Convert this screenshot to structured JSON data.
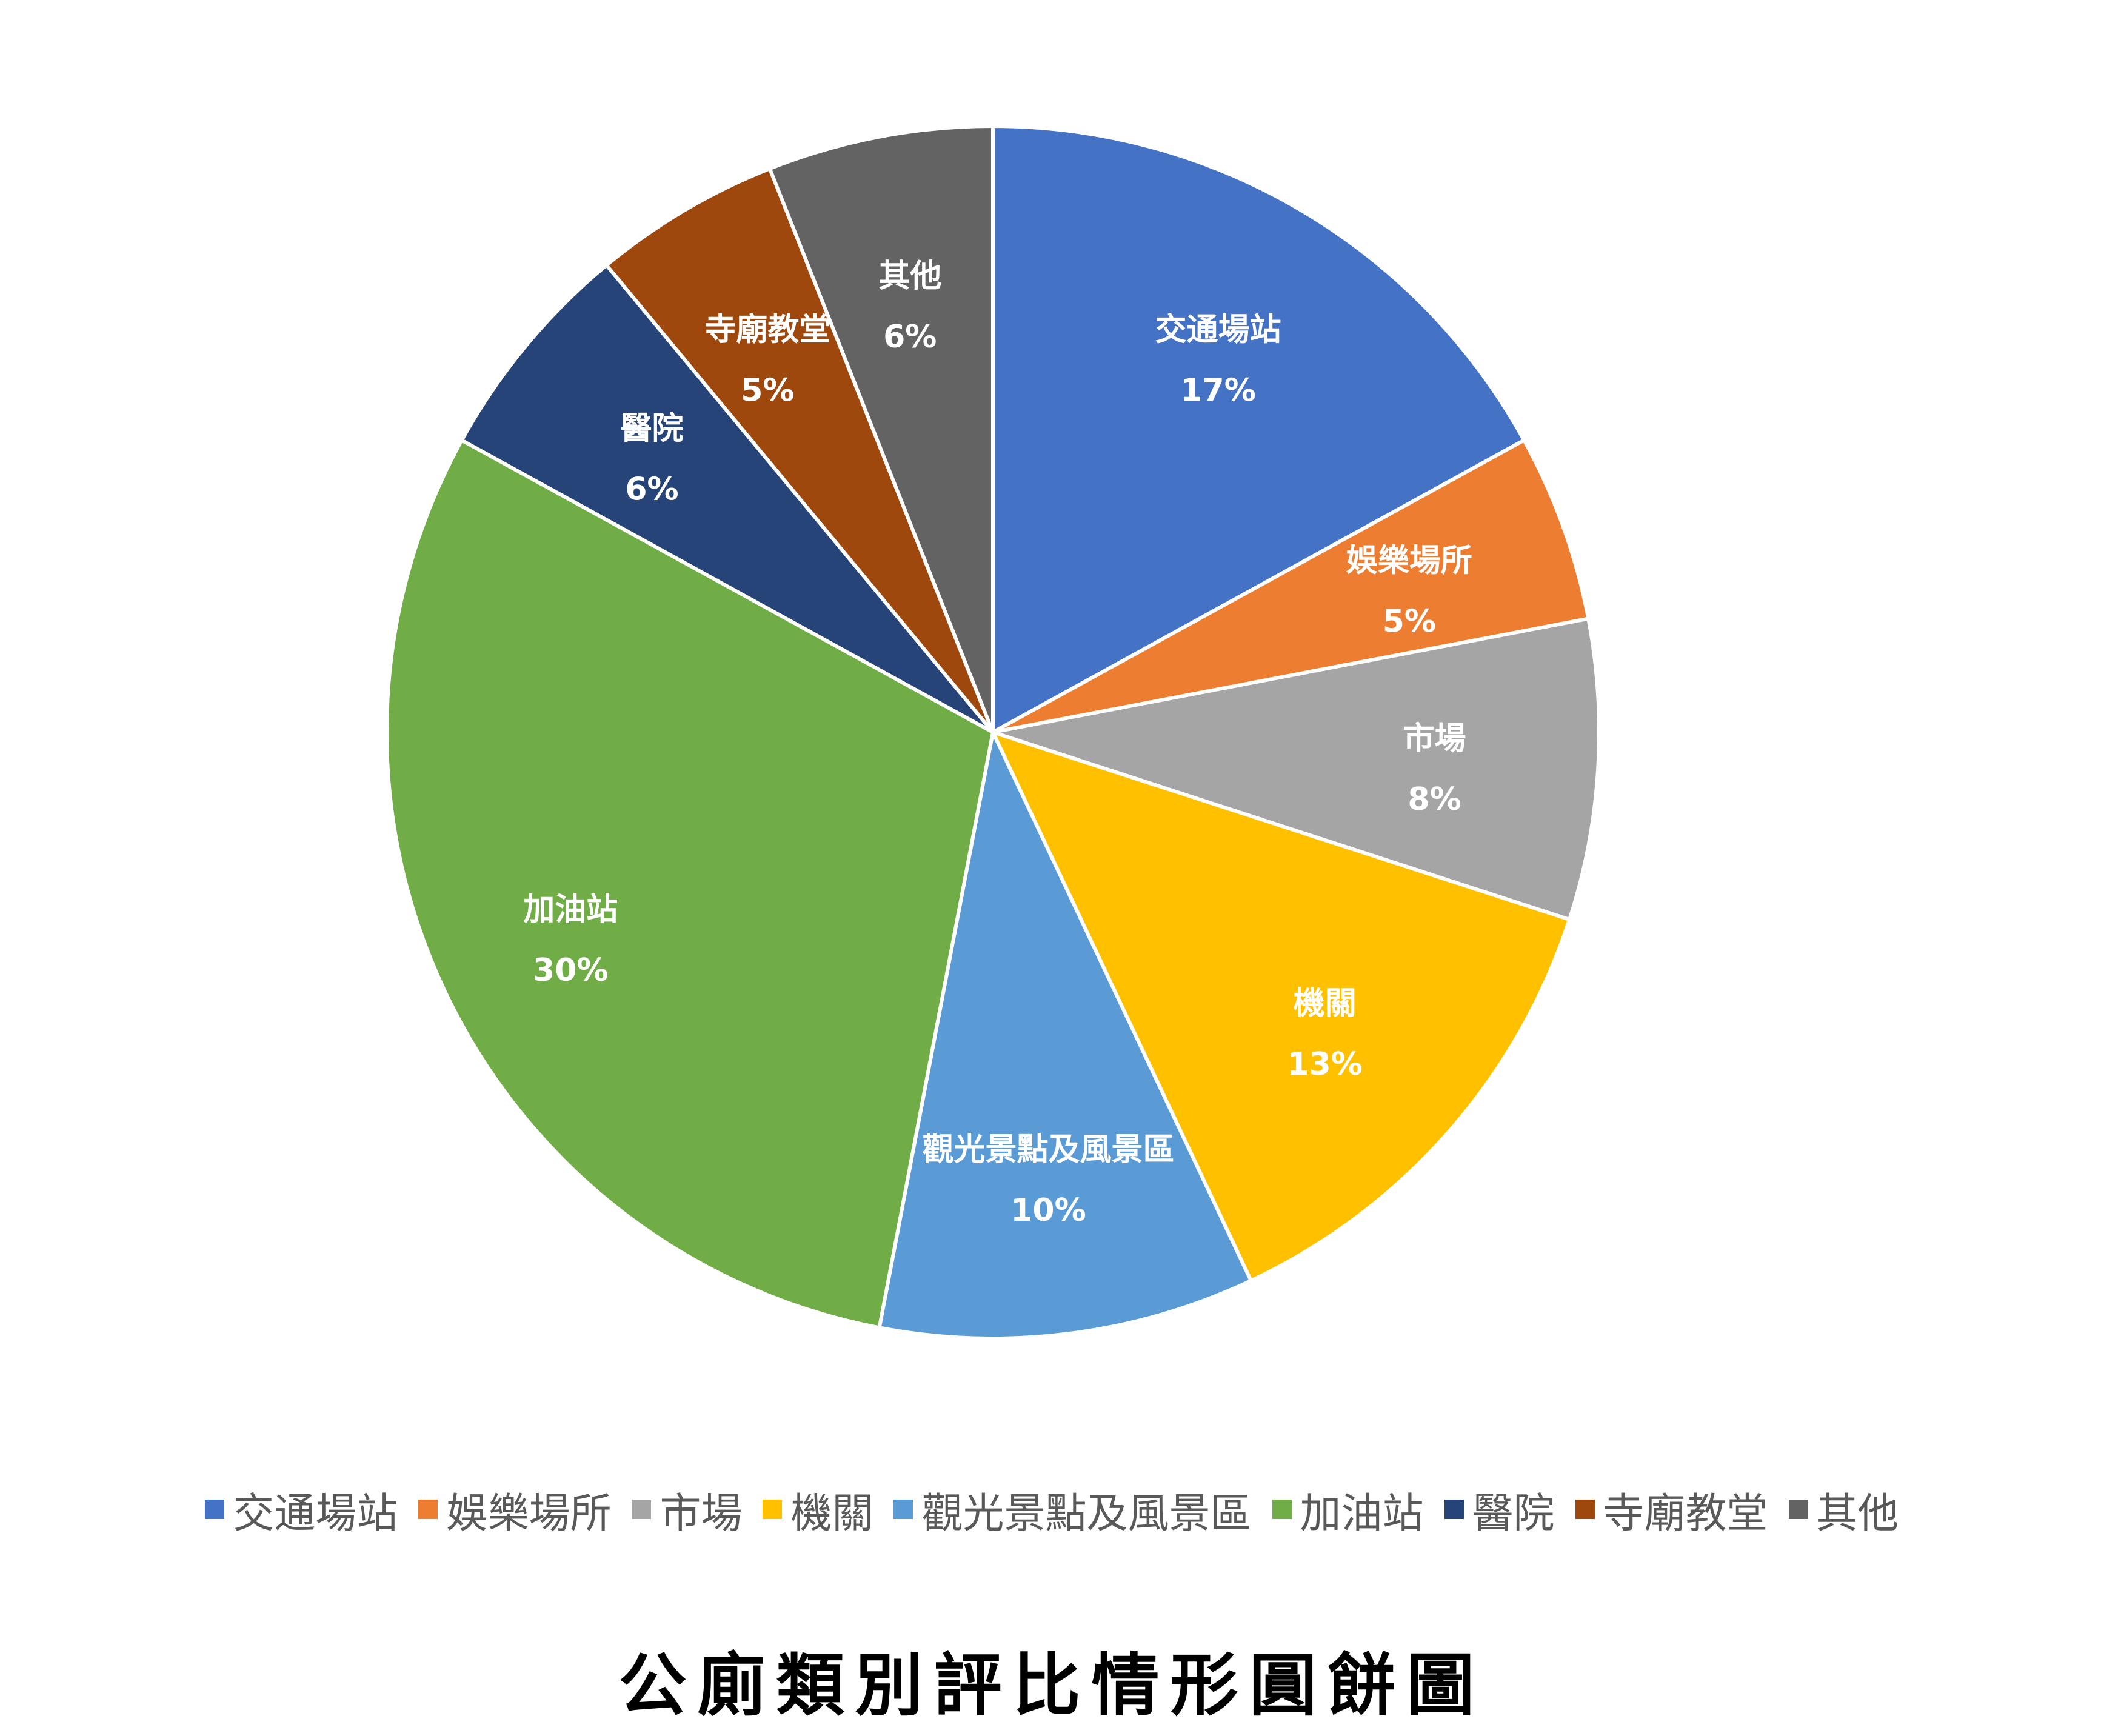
{
  "chart_data": {
    "type": "pie",
    "categories": [
      "交通場站",
      "娛樂場所",
      "市場",
      "機關",
      "觀光景點及風景區",
      "加油站",
      "醫院",
      "寺廟教堂",
      "其他"
    ],
    "values": [
      17,
      5,
      8,
      13,
      10,
      30,
      6,
      5,
      6
    ],
    "value_labels": [
      "17%",
      "5%",
      "8%",
      "13%",
      "10%",
      "30%",
      "6%",
      "5%",
      "6%"
    ],
    "colors": [
      "#4472C4",
      "#ED7D31",
      "#A5A5A5",
      "#FFC000",
      "#5B9BD5",
      "#70AD47",
      "#264478",
      "#9E480E",
      "#636363"
    ],
    "start_angle": "12 o'clock",
    "direction": "clockwise",
    "legend_position": "bottom",
    "slice_label_color": "#FFFFFF"
  },
  "caption": "公廁類別評比情形圓餅圖"
}
